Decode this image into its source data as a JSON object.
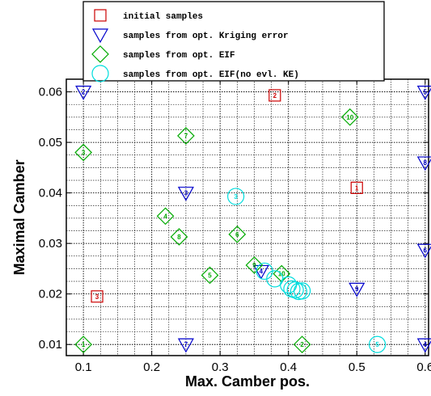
{
  "chart_data": {
    "type": "scatter",
    "xlabel": "Max. Camber pos.",
    "ylabel": "Maximal Camber",
    "xlim": [
      0.075,
      0.605
    ],
    "ylim": [
      0.0078,
      0.0625
    ],
    "x_ticks": [
      "0.1",
      "0.2",
      "0.3",
      "0.4",
      "0.5",
      "0.6"
    ],
    "y_ticks": [
      "0.01",
      "0.02",
      "0.03",
      "0.04",
      "0.05",
      "0.06"
    ],
    "x_tick_values": [
      0.1,
      0.2,
      0.3,
      0.4,
      0.5,
      0.6
    ],
    "y_tick_values": [
      0.01,
      0.02,
      0.03,
      0.04,
      0.05,
      0.06
    ],
    "grid": true,
    "legend_position": "top",
    "series": [
      {
        "name": "initial samples",
        "marker": "square",
        "color": "#cc0000",
        "points": [
          {
            "x": 0.5,
            "y": 0.041,
            "label": "1"
          },
          {
            "x": 0.38,
            "y": 0.0593,
            "label": "2"
          },
          {
            "x": 0.12,
            "y": 0.0195,
            "label": "3"
          }
        ]
      },
      {
        "name": "samples from opt. Kriging error",
        "marker": "triangle-down",
        "color": "#0000cc",
        "points": [
          {
            "x": 0.1,
            "y": 0.06,
            "label": "2"
          },
          {
            "x": 0.6,
            "y": 0.06,
            "label": "5"
          },
          {
            "x": 0.6,
            "y": 0.046,
            "label": "8"
          },
          {
            "x": 0.25,
            "y": 0.04,
            "label": "3"
          },
          {
            "x": 0.6,
            "y": 0.0287,
            "label": "6"
          },
          {
            "x": 0.5,
            "y": 0.021,
            "label": "9"
          },
          {
            "x": 0.25,
            "y": 0.01,
            "label": "7"
          },
          {
            "x": 0.6,
            "y": 0.01,
            "label": "4"
          },
          {
            "x": 0.36,
            "y": 0.0245,
            "label": "4"
          }
        ]
      },
      {
        "name": "samples from opt. EIF",
        "marker": "diamond",
        "color": "#00aa00",
        "points": [
          {
            "x": 0.1,
            "y": 0.048,
            "label": "3"
          },
          {
            "x": 0.25,
            "y": 0.0513,
            "label": "7"
          },
          {
            "x": 0.49,
            "y": 0.055,
            "label": "10"
          },
          {
            "x": 0.22,
            "y": 0.0354,
            "label": "4"
          },
          {
            "x": 0.24,
            "y": 0.0313,
            "label": "8"
          },
          {
            "x": 0.325,
            "y": 0.0318,
            "label": "6"
          },
          {
            "x": 0.285,
            "y": 0.0237,
            "label": "5"
          },
          {
            "x": 0.35,
            "y": 0.0257,
            "label": "9"
          },
          {
            "x": 0.39,
            "y": 0.024,
            "label": "10"
          },
          {
            "x": 0.1,
            "y": 0.01,
            "label": "1"
          },
          {
            "x": 0.42,
            "y": 0.01,
            "label": "2"
          }
        ]
      },
      {
        "name": "samples from opt. EIF(no evl. KE)",
        "marker": "circle",
        "color": "#00dddd",
        "points": [
          {
            "x": 0.323,
            "y": 0.0393,
            "label": "3"
          },
          {
            "x": 0.365,
            "y": 0.0245,
            "label": ""
          },
          {
            "x": 0.38,
            "y": 0.023,
            "label": ""
          },
          {
            "x": 0.4,
            "y": 0.0218,
            "label": ""
          },
          {
            "x": 0.405,
            "y": 0.021,
            "label": ""
          },
          {
            "x": 0.41,
            "y": 0.0208,
            "label": ""
          },
          {
            "x": 0.415,
            "y": 0.0205,
            "label": ""
          },
          {
            "x": 0.42,
            "y": 0.0206,
            "label": ""
          },
          {
            "x": 0.53,
            "y": 0.01,
            "label": "5"
          }
        ]
      }
    ]
  }
}
